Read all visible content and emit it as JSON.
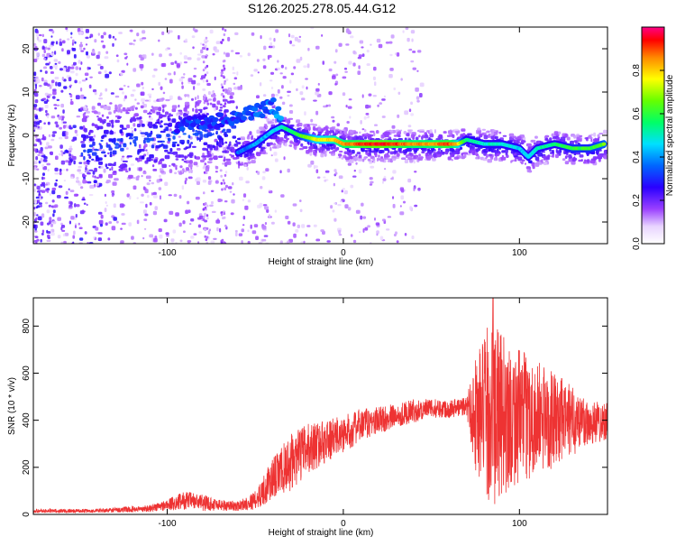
{
  "title": "S126.2025.278.05.44.G12",
  "chart_data": [
    {
      "type": "heatmap",
      "xlabel": "Height of straight line (km)",
      "ylabel": "Frequency (Hz)",
      "xlim": [
        -176,
        150
      ],
      "ylim": [
        -25,
        25
      ],
      "x_ticks": [
        -100,
        0,
        100
      ],
      "y_ticks": [
        -20,
        -10,
        0,
        10,
        20
      ],
      "colorbar": {
        "label": "Normalized spectral amplitude",
        "range": [
          0,
          1
        ],
        "ticks": [
          "0.0",
          "0.2",
          "0.4",
          "0.6",
          "0.8"
        ],
        "tick_values": [
          0,
          0.2,
          0.4,
          0.6,
          0.8
        ]
      },
      "ridge": {
        "x": [
          -60,
          -50,
          -40,
          -35,
          -25,
          -15,
          -5,
          0,
          10,
          20,
          30,
          40,
          50,
          60,
          65,
          70,
          80,
          90,
          100,
          105,
          110,
          120,
          130,
          140,
          148
        ],
        "y": [
          -4,
          -2,
          1,
          2,
          0,
          -1,
          -1,
          -2,
          -2,
          -2,
          -2,
          -2,
          -2,
          -2,
          -2,
          -1,
          -2,
          -2,
          -3,
          -5,
          -3,
          -2,
          -3,
          -3,
          -2
        ],
        "amplitude": [
          0.35,
          0.4,
          0.45,
          0.5,
          0.6,
          0.75,
          0.8,
          0.85,
          0.9,
          0.95,
          0.9,
          0.85,
          0.85,
          0.9,
          0.8,
          0.55,
          0.5,
          0.5,
          0.45,
          0.45,
          0.5,
          0.55,
          0.6,
          0.6,
          0.65
        ]
      },
      "upper_branch": {
        "x": [
          -95,
          -85,
          -75,
          -65,
          -55,
          -45,
          -40,
          -35
        ],
        "y": [
          2,
          3,
          3,
          4,
          5,
          6,
          7,
          4
        ],
        "amplitude": [
          0.3,
          0.3,
          0.3,
          0.3,
          0.3,
          0.35,
          0.35,
          0.4
        ]
      }
    },
    {
      "type": "line",
      "xlabel": "Height of straight line (km)",
      "ylabel": "SNR (10 * v/v)",
      "xlim": [
        -176,
        150
      ],
      "ylim": [
        0,
        920
      ],
      "x_ticks": [
        -100,
        0,
        100
      ],
      "y_ticks": [
        0,
        200,
        400,
        600,
        800
      ],
      "color": "#ee3333",
      "envelope": {
        "x": [
          -176,
          -140,
          -110,
          -100,
          -90,
          -80,
          -70,
          -60,
          -50,
          -40,
          -30,
          -20,
          -10,
          0,
          10,
          20,
          30,
          40,
          50,
          60,
          70,
          75,
          80,
          85,
          90,
          100,
          110,
          120,
          130,
          140,
          150
        ],
        "mean": [
          15,
          15,
          25,
          40,
          60,
          50,
          40,
          35,
          60,
          150,
          220,
          280,
          310,
          340,
          380,
          400,
          420,
          440,
          450,
          450,
          460,
          430,
          430,
          420,
          420,
          420,
          410,
          400,
          400,
          390,
          400
        ],
        "spread": [
          8,
          8,
          15,
          25,
          40,
          35,
          25,
          20,
          40,
          90,
          120,
          110,
          90,
          80,
          70,
          60,
          50,
          50,
          40,
          40,
          40,
          250,
          350,
          400,
          350,
          280,
          250,
          200,
          150,
          100,
          80
        ]
      },
      "peak": {
        "x": 85,
        "y": 920
      }
    }
  ]
}
